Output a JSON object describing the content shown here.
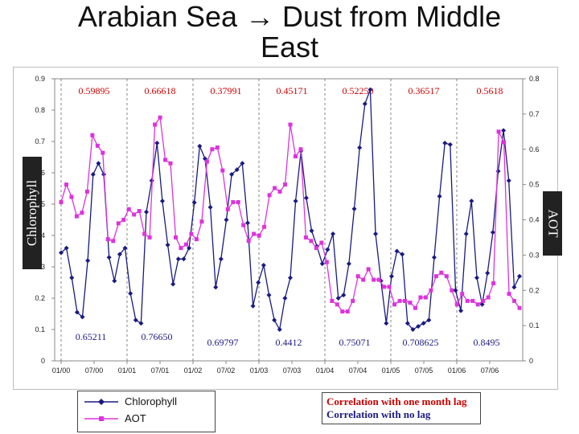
{
  "slide": {
    "title_line1": "Arabian Sea → Dust from Middle",
    "title_line2": "East"
  },
  "labels": {
    "left_axis": "Chlorophyll",
    "right_axis": "AOT"
  },
  "legend": [
    {
      "name": "Chlorophyll",
      "color": "#1a1a80",
      "marker": "diamond"
    },
    {
      "name": "AOT",
      "color": "#dd33dd",
      "marker": "square"
    }
  ],
  "notes": {
    "lag_label": "Correlation with one month lag",
    "nolag_label": "Correlation with no lag",
    "lag_color": "#cc0000",
    "nolag_color": "#1a1a80"
  },
  "chart_data": {
    "type": "line",
    "x_tick_labels": [
      "01/00",
      "07/00",
      "01/01",
      "07/01",
      "01/02",
      "07/02",
      "01/03",
      "07/03",
      "01/04",
      "07/04",
      "01/05",
      "07/05",
      "01/06",
      "07/06"
    ],
    "left_axis": {
      "ylim": [
        0,
        0.9
      ],
      "ticks": [
        "0",
        "0.1",
        "0.2",
        "0.3",
        "0.4",
        "0.5",
        "0.6",
        "0.7",
        "0.8",
        "0.9"
      ]
    },
    "right_axis": {
      "ylim": [
        0,
        0.8
      ],
      "ticks": [
        "0",
        "0.1",
        "0.2",
        "0.3",
        "0.4",
        "0.5",
        "0.6",
        "0.7",
        "0.8"
      ]
    },
    "year_dividers": true,
    "correlations_lag_top": [
      "0.59895",
      "0.66618",
      "0.37991",
      "0.45171",
      "0.52250",
      "0.36517",
      "0.5618"
    ],
    "correlations_nolag_bottom": [
      "0.65211",
      "0.76650",
      "0.69797",
      "0.4412",
      "0.75071",
      "0.708625",
      "0.8495"
    ],
    "series": [
      {
        "name": "Chlorophyll",
        "axis": "left",
        "values": [
          0.345,
          0.36,
          0.265,
          0.155,
          0.14,
          0.32,
          0.595,
          0.63,
          0.595,
          0.33,
          0.255,
          0.34,
          0.36,
          0.215,
          0.13,
          0.12,
          0.475,
          0.575,
          0.695,
          0.51,
          0.37,
          0.245,
          0.325,
          0.325,
          0.36,
          0.505,
          0.685,
          0.645,
          0.49,
          0.235,
          0.325,
          0.45,
          0.595,
          0.61,
          0.63,
          0.44,
          0.175,
          0.25,
          0.305,
          0.21,
          0.13,
          0.1,
          0.2,
          0.265,
          0.51,
          0.67,
          0.52,
          0.415,
          0.365,
          0.31,
          0.355,
          0.405,
          0.2,
          0.21,
          0.31,
          0.485,
          0.68,
          0.82,
          0.865,
          0.405,
          0.255,
          0.12,
          0.27,
          0.35,
          0.34,
          0.12,
          0.1,
          0.11,
          0.12,
          0.13,
          0.33,
          0.525,
          0.695,
          0.69,
          0.225,
          0.16,
          0.405,
          0.51,
          0.265,
          0.18,
          0.28,
          0.41,
          0.605,
          0.735,
          0.575,
          0.235,
          0.27
        ]
      },
      {
        "name": "AOT",
        "axis": "right",
        "values": [
          0.45,
          0.5,
          0.465,
          0.41,
          0.42,
          0.48,
          0.64,
          0.61,
          0.59,
          0.345,
          0.34,
          0.39,
          0.4,
          0.43,
          0.415,
          0.425,
          0.36,
          0.35,
          0.67,
          0.69,
          0.57,
          0.56,
          0.35,
          0.32,
          0.33,
          0.36,
          0.345,
          0.395,
          0.565,
          0.6,
          0.605,
          0.54,
          0.43,
          0.45,
          0.45,
          0.385,
          0.34,
          0.36,
          0.355,
          0.38,
          0.47,
          0.49,
          0.48,
          0.5,
          0.67,
          0.58,
          0.6,
          0.35,
          0.34,
          0.32,
          0.335,
          0.28,
          0.17,
          0.16,
          0.14,
          0.14,
          0.17,
          0.24,
          0.23,
          0.26,
          0.23,
          0.23,
          0.21,
          0.21,
          0.16,
          0.17,
          0.17,
          0.165,
          0.15,
          0.18,
          0.18,
          0.2,
          0.24,
          0.25,
          0.24,
          0.2,
          0.16,
          0.19,
          0.17,
          0.17,
          0.16,
          0.17,
          0.18,
          0.22,
          0.65,
          0.62,
          0.19,
          0.17,
          0.15
        ]
      }
    ]
  }
}
